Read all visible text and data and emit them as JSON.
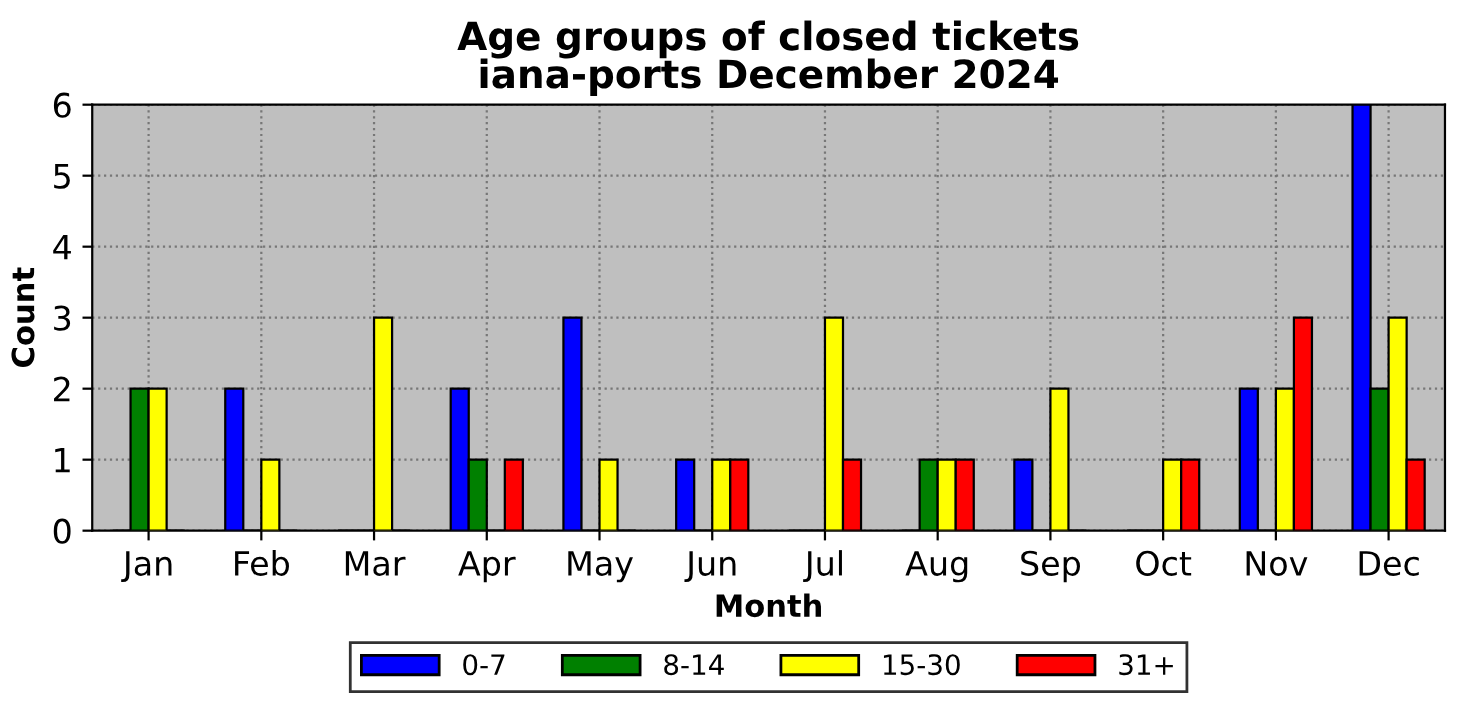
{
  "chart_data": {
    "type": "bar",
    "title": "Age groups of closed tickets\niana-ports December 2024",
    "xlabel": "Month",
    "ylabel": "Count",
    "categories": [
      "Jan",
      "Feb",
      "Mar",
      "Apr",
      "May",
      "Jun",
      "Jul",
      "Aug",
      "Sep",
      "Oct",
      "Nov",
      "Dec"
    ],
    "series": [
      {
        "name": "0-7",
        "color": "#0000ff",
        "values": [
          0,
          2,
          0,
          2,
          3,
          1,
          0,
          0,
          1,
          0,
          2,
          6
        ]
      },
      {
        "name": "8-14",
        "color": "#008000",
        "values": [
          2,
          0,
          0,
          1,
          0,
          0,
          0,
          1,
          0,
          0,
          0,
          2
        ]
      },
      {
        "name": "15-30",
        "color": "#ffff00",
        "values": [
          2,
          1,
          3,
          0,
          1,
          1,
          3,
          1,
          2,
          1,
          2,
          3
        ]
      },
      {
        "name": "31+",
        "color": "#ff0000",
        "values": [
          0,
          0,
          0,
          1,
          0,
          1,
          1,
          1,
          0,
          1,
          3,
          1
        ]
      }
    ],
    "ylim": [
      0,
      6
    ],
    "yticks": [
      0,
      1,
      2,
      3,
      4,
      5,
      6
    ],
    "grid": true,
    "legend": "bottom"
  }
}
